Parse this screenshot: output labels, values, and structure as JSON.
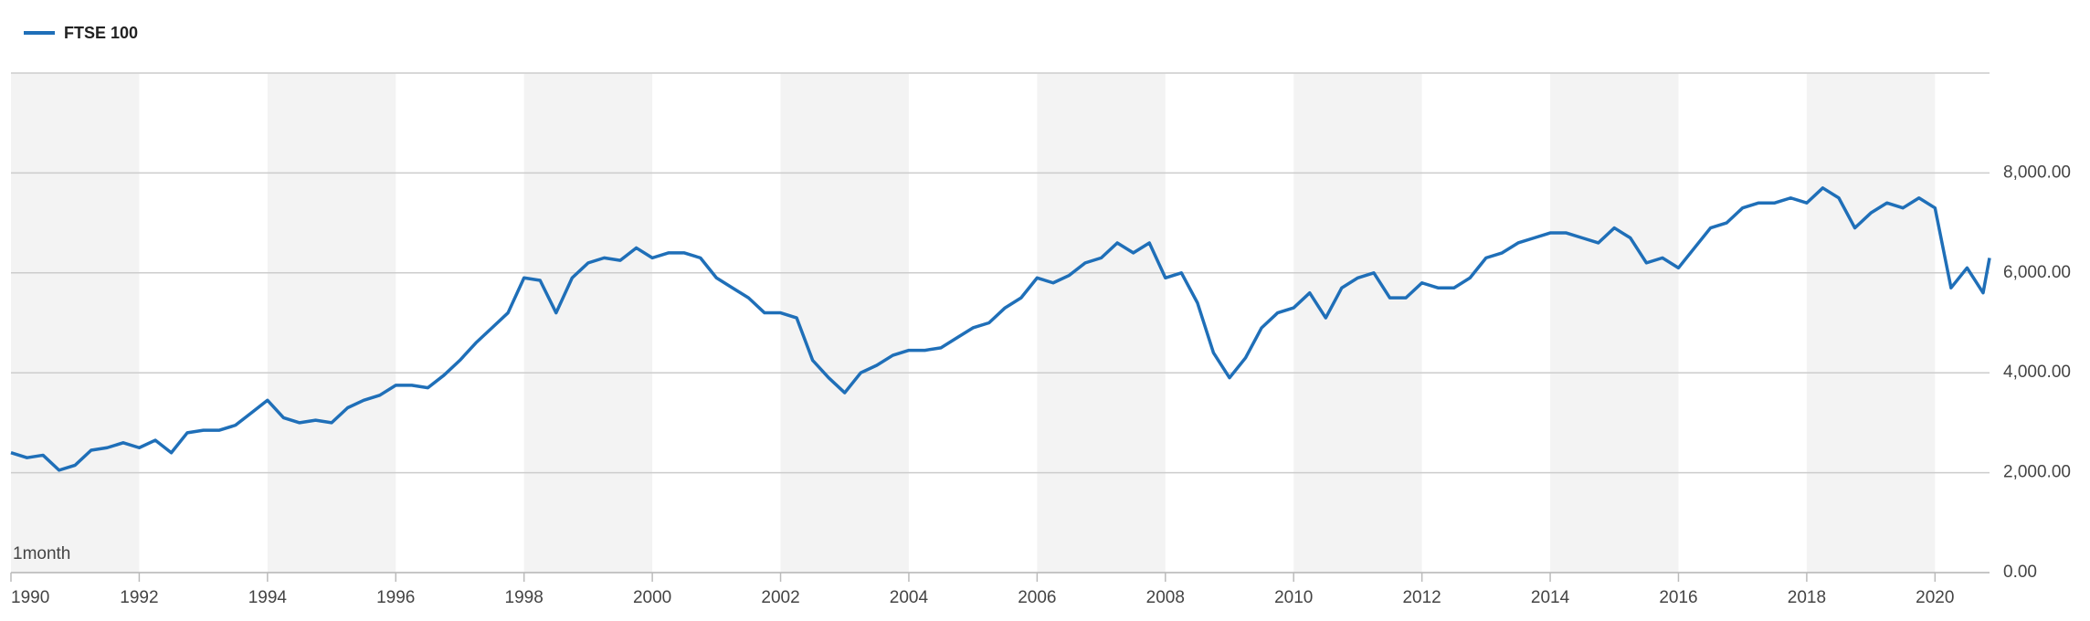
{
  "chart_data": {
    "type": "line",
    "legend": "top-left",
    "grid": true,
    "band_color": "#f3f3f3",
    "note": "1month",
    "x": [
      1990,
      1990.25,
      1990.5,
      1990.75,
      1991,
      1991.25,
      1991.5,
      1991.75,
      1992,
      1992.25,
      1992.5,
      1992.75,
      1993,
      1993.25,
      1993.5,
      1993.75,
      1994,
      1994.25,
      1994.5,
      1994.75,
      1995,
      1995.25,
      1995.5,
      1995.75,
      1996,
      1996.25,
      1996.5,
      1996.75,
      1997,
      1997.25,
      1997.5,
      1997.75,
      1998,
      1998.25,
      1998.5,
      1998.75,
      1999,
      1999.25,
      1999.5,
      1999.75,
      2000,
      2000.25,
      2000.5,
      2000.75,
      2001,
      2001.25,
      2001.5,
      2001.75,
      2002,
      2002.25,
      2002.5,
      2002.75,
      2003,
      2003.25,
      2003.5,
      2003.75,
      2004,
      2004.25,
      2004.5,
      2004.75,
      2005,
      2005.25,
      2005.5,
      2005.75,
      2006,
      2006.25,
      2006.5,
      2006.75,
      2007,
      2007.25,
      2007.5,
      2007.75,
      2008,
      2008.25,
      2008.5,
      2008.75,
      2009,
      2009.25,
      2009.5,
      2009.75,
      2010,
      2010.25,
      2010.5,
      2010.75,
      2011,
      2011.25,
      2011.5,
      2011.75,
      2012,
      2012.25,
      2012.5,
      2012.75,
      2013,
      2013.25,
      2013.5,
      2013.75,
      2014,
      2014.25,
      2014.5,
      2014.75,
      2015,
      2015.25,
      2015.5,
      2015.75,
      2016,
      2016.25,
      2016.5,
      2016.75,
      2017,
      2017.25,
      2017.5,
      2017.75,
      2018,
      2018.25,
      2018.5,
      2018.75,
      2019,
      2019.25,
      2019.5,
      2019.75,
      2020,
      2020.25,
      2020.5,
      2020.75,
      2020.85
    ],
    "series": [
      {
        "name": "FTSE 100",
        "color": "#1f6fb8",
        "values": [
          2400,
          2300,
          2350,
          2050,
          2150,
          2450,
          2500,
          2600,
          2500,
          2650,
          2400,
          2800,
          2850,
          2850,
          2950,
          3200,
          3450,
          3100,
          3000,
          3050,
          3000,
          3300,
          3450,
          3550,
          3750,
          3750,
          3700,
          3950,
          4250,
          4600,
          4900,
          5200,
          5900,
          5850,
          5200,
          5900,
          6200,
          6300,
          6250,
          6500,
          6300,
          6400,
          6400,
          6300,
          5900,
          5700,
          5500,
          5200,
          5200,
          5100,
          4250,
          3900,
          3600,
          4000,
          4150,
          4350,
          4450,
          4450,
          4500,
          4700,
          4900,
          5000,
          5300,
          5500,
          5900,
          5800,
          5950,
          6200,
          6300,
          6600,
          6400,
          6600,
          5900,
          6000,
          5400,
          4400,
          3900,
          4300,
          4900,
          5200,
          5300,
          5600,
          5100,
          5700,
          5900,
          6000,
          5500,
          5500,
          5800,
          5700,
          5700,
          5900,
          6300,
          6400,
          6600,
          6700,
          6800,
          6800,
          6700,
          6600,
          6900,
          6700,
          6200,
          6300,
          6100,
          6500,
          6900,
          7000,
          7300,
          7400,
          7400,
          7500,
          7400,
          7700,
          7500,
          6900,
          7200,
          7400,
          7300,
          7500,
          7300,
          5700,
          6100,
          5600,
          6300
        ]
      }
    ],
    "xlim": [
      1990,
      2020.85
    ],
    "xticks": [
      1990,
      1992,
      1994,
      1996,
      1998,
      2000,
      2002,
      2004,
      2006,
      2008,
      2010,
      2012,
      2014,
      2016,
      2018,
      2020
    ],
    "ylim": [
      0,
      10000
    ],
    "yticks": [
      {
        "value": 0,
        "label": "0.00"
      },
      {
        "value": 2000,
        "label": "2,000.00"
      },
      {
        "value": 4000,
        "label": "4,000.00"
      },
      {
        "value": 6000,
        "label": "6,000.00"
      },
      {
        "value": 8000,
        "label": "8,000.00"
      }
    ]
  }
}
